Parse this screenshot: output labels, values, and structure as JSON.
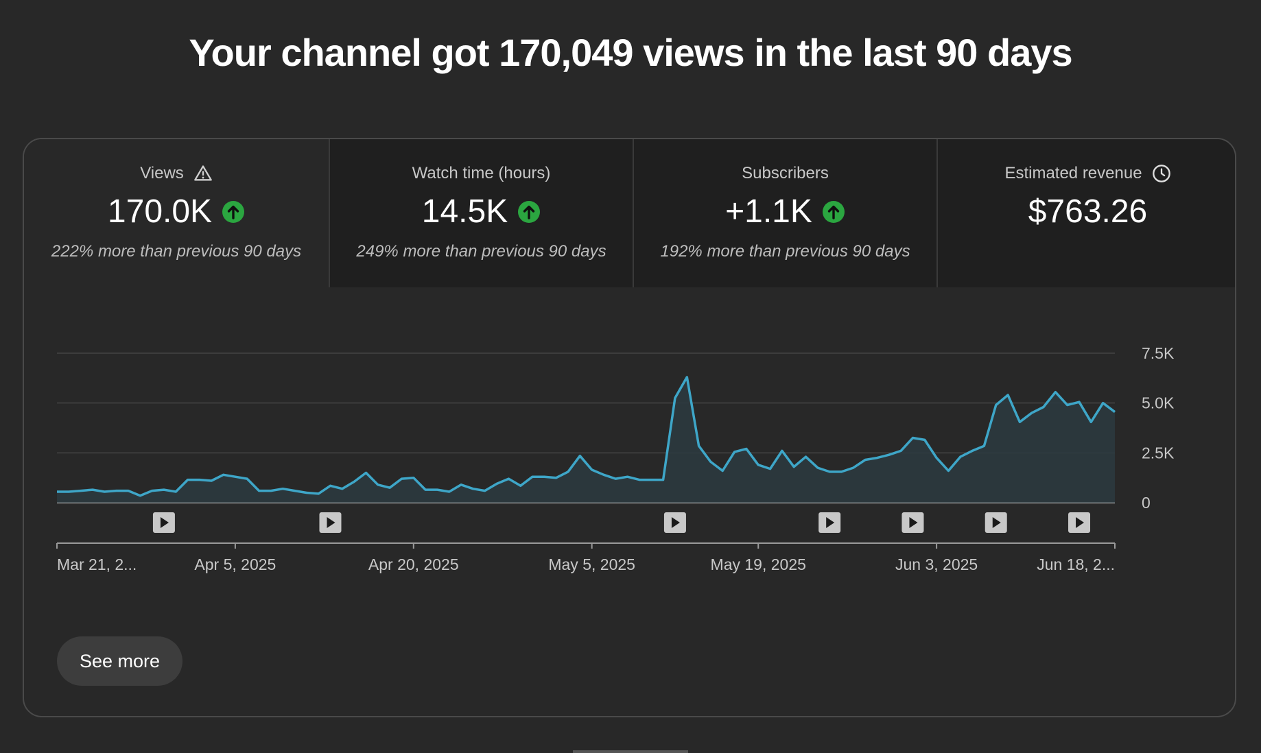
{
  "headline": "Your channel got 170,049 views in the last 90 days",
  "tabs": [
    {
      "label": "Views",
      "icon": "warning-icon",
      "value": "170.0K",
      "trend": "up",
      "sub": "222% more than previous 90 days",
      "selected": true
    },
    {
      "label": "Watch time (hours)",
      "icon": "",
      "value": "14.5K",
      "trend": "up",
      "sub": "249% more than previous 90 days",
      "selected": false
    },
    {
      "label": "Subscribers",
      "icon": "",
      "value": "+1.1K",
      "trend": "up",
      "sub": "192% more than previous 90 days",
      "selected": false
    },
    {
      "label": "Estimated revenue",
      "icon": "clock-icon",
      "value": "$763.26",
      "trend": "",
      "sub": "",
      "selected": false
    }
  ],
  "colors": {
    "line": "#3ea6c8",
    "fill": "#2b3a40",
    "trend_up": "#2ba640",
    "grid": "#444444"
  },
  "chart_data": {
    "type": "area",
    "ylim": [
      0,
      7500
    ],
    "yticks": [
      "0",
      "2.5K",
      "5.0K",
      "7.5K"
    ],
    "ytick_values": [
      0,
      2500,
      5000,
      7500
    ],
    "xtick_labels": [
      "Mar 21, 2...",
      "Apr 5, 2025",
      "Apr 20, 2025",
      "May 5, 2025",
      "May 19, 2025",
      "Jun 3, 2025",
      "Jun 18, 2..."
    ],
    "xtick_days": [
      0,
      15,
      30,
      45,
      59,
      74,
      89
    ],
    "video_markers_days": [
      9,
      23,
      52,
      65,
      72,
      79,
      86
    ],
    "grid": true,
    "series": [
      {
        "values": [
          550,
          550,
          600,
          650,
          550,
          600,
          600,
          350,
          600,
          650,
          550,
          1150,
          1150,
          1100,
          1400,
          1300,
          1200,
          600,
          600,
          700,
          600,
          500,
          450,
          850,
          700,
          1050,
          1500,
          900,
          750,
          1200,
          1250,
          650,
          650,
          550,
          900,
          700,
          600,
          950,
          1200,
          850,
          1300,
          1300,
          1250,
          1550,
          2350,
          1650,
          1400,
          1200,
          1300,
          1150,
          1150,
          1150,
          5250,
          6300,
          2850,
          2050,
          1600,
          2550,
          2700,
          1900,
          1700,
          2600,
          1800,
          2300,
          1750,
          1550,
          1550,
          1750,
          2150,
          2250,
          2400,
          2600,
          3250,
          3150,
          2250,
          1600,
          2300,
          2600,
          2850,
          4900,
          5400,
          4050,
          4500,
          4800,
          5550,
          4900,
          5050,
          4050,
          5000,
          4550
        ]
      }
    ]
  },
  "see_more": "See more"
}
